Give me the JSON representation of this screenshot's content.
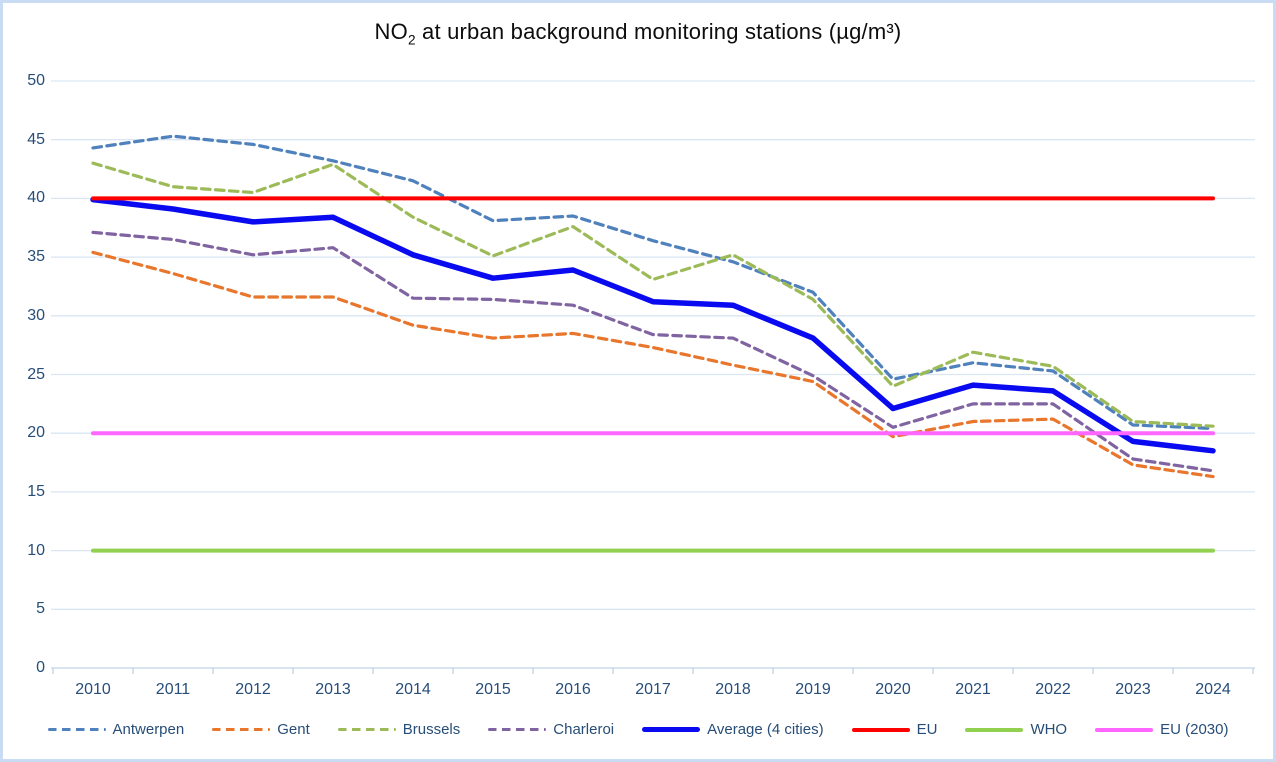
{
  "header": {
    "title_pre": "NO",
    "title_sub": "2",
    "title_post": " at urban background monitoring stations (µg/m³)"
  },
  "colors": {
    "frame_border": "#C9DCF3",
    "gridline": "#DAE6F3",
    "axis_line": "#C0D3E8",
    "axis_text": "#274E78",
    "title_text": "#0d0d0d"
  },
  "chart_data": {
    "type": "line",
    "title": "NO2 at urban background monitoring stations (µg/m³)",
    "x": [
      2010,
      2011,
      2012,
      2013,
      2014,
      2015,
      2016,
      2017,
      2018,
      2019,
      2020,
      2021,
      2022,
      2023,
      2024
    ],
    "ylim": [
      0,
      50
    ],
    "yticks": [
      0,
      5,
      10,
      15,
      20,
      25,
      30,
      35,
      40,
      45,
      50
    ],
    "grid": true,
    "legend_position": "bottom",
    "series": [
      {
        "name": "Antwerpen",
        "color": "#4F81BD",
        "style": "dashed",
        "values": [
          44.3,
          45.3,
          44.6,
          43.2,
          41.5,
          38.1,
          38.5,
          36.4,
          34.6,
          32.0,
          24.6,
          26.0,
          25.3,
          20.7,
          20.4
        ]
      },
      {
        "name": "Gent",
        "color": "#E8762C",
        "style": "dashed",
        "values": [
          35.4,
          33.6,
          31.6,
          31.6,
          29.2,
          28.1,
          28.5,
          27.3,
          25.8,
          24.4,
          19.7,
          21.0,
          21.2,
          17.3,
          16.3
        ]
      },
      {
        "name": "Brussels",
        "color": "#9CBB58",
        "style": "dashed",
        "values": [
          43.0,
          41.0,
          40.5,
          42.9,
          38.4,
          35.1,
          37.6,
          33.1,
          35.2,
          31.4,
          24.0,
          26.9,
          25.7,
          21.0,
          20.6
        ]
      },
      {
        "name": "Charleroi",
        "color": "#8064A2",
        "style": "dashed",
        "values": [
          37.1,
          36.5,
          35.2,
          35.8,
          31.5,
          31.4,
          30.9,
          28.4,
          28.1,
          24.9,
          20.5,
          22.5,
          22.5,
          17.8,
          16.8
        ]
      },
      {
        "name": "Average (4 cities)",
        "color": "#0A0AF0",
        "style": "solid",
        "thick": true,
        "values": [
          39.9,
          39.1,
          38.0,
          38.4,
          35.2,
          33.2,
          33.9,
          31.2,
          30.9,
          28.1,
          22.1,
          24.1,
          23.6,
          19.3,
          18.5
        ]
      },
      {
        "name": "EU",
        "color": "#FF0000",
        "style": "solid",
        "constant": 40
      },
      {
        "name": "WHO",
        "color": "#92D050",
        "style": "solid",
        "constant": 10
      },
      {
        "name": "EU (2030)",
        "color": "#FF66FF",
        "style": "solid",
        "constant": 20
      }
    ]
  }
}
